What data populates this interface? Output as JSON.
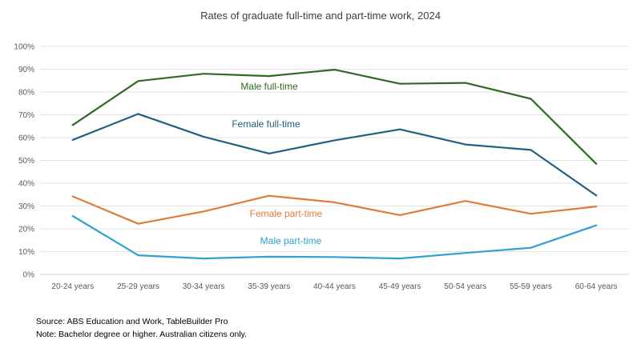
{
  "chart_data": {
    "type": "line",
    "title": "Rates of graduate full-time and part-time work, 2024",
    "categories": [
      "20-24 years",
      "25-29 years",
      "30-34 years",
      "35-39 years",
      "40-44 years",
      "45-49 years",
      "50-54 years",
      "55-59 years",
      "60-64 years"
    ],
    "ylim": [
      0,
      100
    ],
    "yticks": [
      0,
      10,
      20,
      30,
      40,
      50,
      60,
      70,
      80,
      90,
      100
    ],
    "ytick_labels": [
      "0%",
      "10%",
      "20%",
      "30%",
      "40%",
      "50%",
      "60%",
      "70%",
      "80%",
      "90%",
      "100%"
    ],
    "grid": true,
    "legend": "inline labels",
    "series": [
      {
        "name": "Male full-time",
        "color": "#2E6B21",
        "values": [
          65.5,
          84.8,
          88,
          87,
          89.8,
          83.6,
          84,
          77,
          48.5
        ]
      },
      {
        "name": "Female full-time",
        "color": "#1F5F7F",
        "values": [
          59,
          70.4,
          60.4,
          53,
          58.8,
          63.6,
          57,
          54.6,
          34.6
        ]
      },
      {
        "name": "Female part-time",
        "color": "#E07B3C",
        "values": [
          34.2,
          22.2,
          27.6,
          34.5,
          31.6,
          26,
          32.2,
          26.6,
          29.8
        ]
      },
      {
        "name": "Male part-time",
        "color": "#2FA0D0",
        "values": [
          25.6,
          8.4,
          7,
          7.8,
          7.6,
          7,
          9.4,
          11.7,
          21.5
        ]
      }
    ]
  },
  "footer": {
    "source": "Source: ABS Education and Work, TableBuilder  Pro",
    "note": "Note: Bachelor degree or higher. Australian citizens only."
  }
}
